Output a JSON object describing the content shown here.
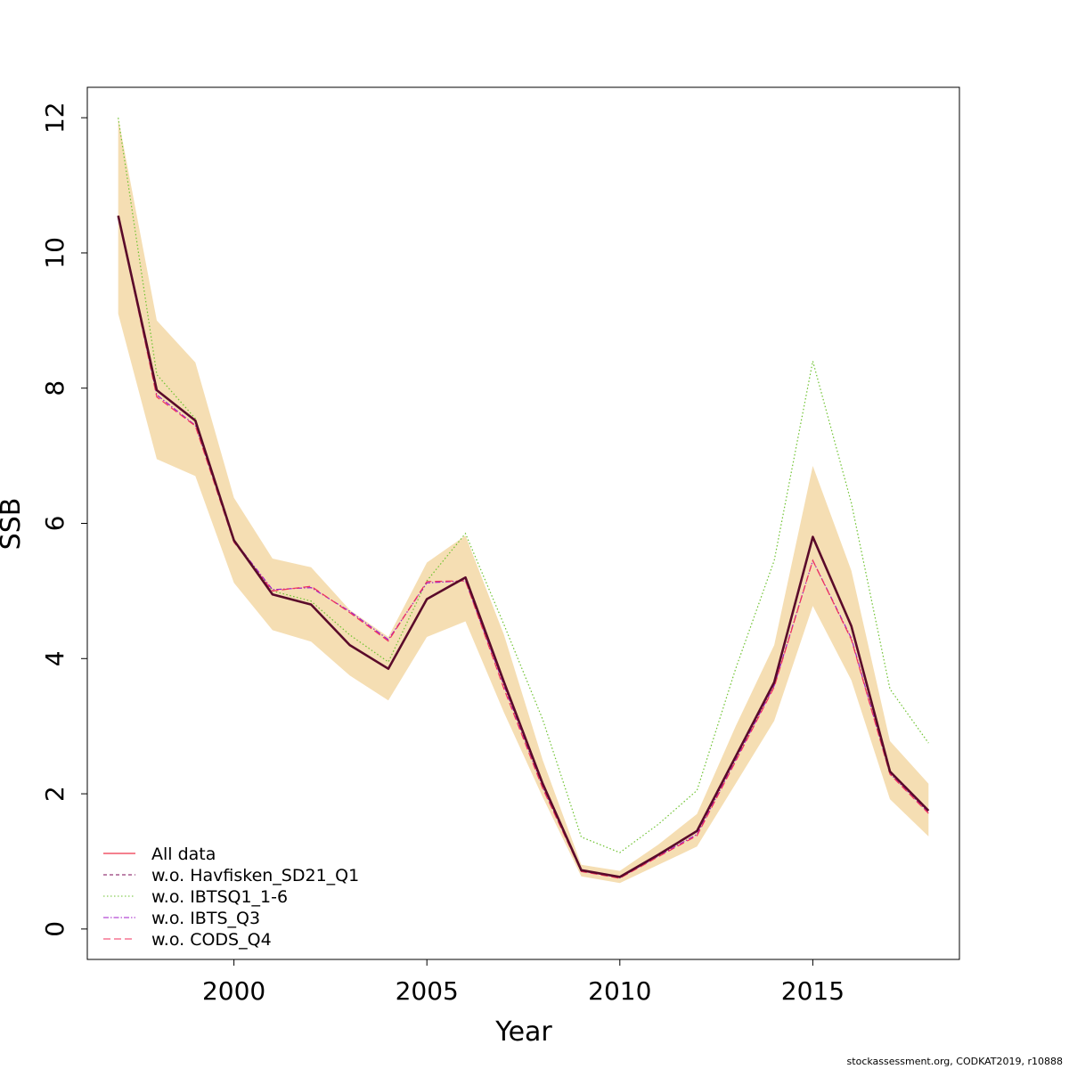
{
  "chart_data": {
    "type": "line",
    "xlabel": "Year",
    "ylabel": "SSB",
    "xlim": [
      1996.2,
      2018.8
    ],
    "ylim": [
      -0.45,
      12.45
    ],
    "x_ticks": [
      2000,
      2005,
      2010,
      2015
    ],
    "y_ticks": [
      0,
      2,
      4,
      6,
      8,
      10,
      12
    ],
    "grid": false,
    "legend_position": "bottom-left",
    "confidence_band": {
      "color": "#F5DEB3",
      "x": [
        1997,
        1998,
        1999,
        2000,
        2001,
        2002,
        2003,
        2004,
        2005,
        2006,
        2007,
        2008,
        2009,
        2010,
        2011,
        2012,
        2013,
        2014,
        2015,
        2016,
        2017,
        2018
      ],
      "lower": [
        9.1,
        6.95,
        6.7,
        5.12,
        4.42,
        4.25,
        3.75,
        3.38,
        4.32,
        4.55,
        3.2,
        1.95,
        0.78,
        0.68,
        0.95,
        1.22,
        2.15,
        3.08,
        4.78,
        3.68,
        1.92,
        1.37
      ],
      "upper": [
        12.0,
        9.0,
        8.38,
        6.38,
        5.48,
        5.35,
        4.72,
        4.32,
        5.42,
        5.82,
        4.35,
        2.5,
        0.95,
        0.86,
        1.25,
        1.7,
        3.0,
        4.2,
        6.85,
        5.3,
        2.78,
        2.15
      ]
    },
    "series": [
      {
        "name": "All data",
        "color": "#E8001C",
        "dash": "solid",
        "y": [
          10.55,
          7.97,
          7.52,
          5.75,
          4.95,
          4.8,
          4.2,
          3.85,
          4.88,
          5.2,
          3.65,
          2.15,
          0.87,
          0.77,
          1.1,
          1.45,
          2.55,
          3.65,
          5.8,
          4.48,
          2.33,
          1.75
        ]
      },
      {
        "name": "w.o. Havfisken_SD21_Q1",
        "color": "#7D0A57",
        "dash": "4,3",
        "y": [
          10.55,
          7.97,
          7.52,
          5.75,
          4.95,
          4.8,
          4.2,
          3.85,
          4.88,
          5.2,
          3.65,
          2.15,
          0.87,
          0.77,
          1.1,
          1.45,
          2.55,
          3.65,
          5.8,
          4.48,
          2.33,
          1.75
        ]
      },
      {
        "name": "w.o. IBTSQ1_1-6",
        "color": "#6DC22F",
        "dash": "1.5,2.5",
        "y": [
          12.0,
          8.2,
          7.55,
          5.75,
          5.0,
          4.85,
          4.35,
          3.95,
          5.15,
          5.85,
          4.5,
          3.1,
          1.36,
          1.13,
          1.55,
          2.05,
          3.85,
          5.45,
          8.4,
          6.3,
          3.55,
          2.75
        ]
      },
      {
        "name": "w.o. IBTS_Q3",
        "color": "#A11EC8",
        "dash": "6,2,1.5,2",
        "y": [
          10.55,
          7.9,
          7.45,
          5.75,
          5.02,
          5.05,
          4.7,
          4.28,
          5.12,
          5.15,
          3.6,
          2.1,
          0.86,
          0.76,
          1.08,
          1.4,
          2.5,
          3.6,
          5.45,
          4.3,
          2.3,
          1.72
        ]
      },
      {
        "name": "w.o. CODS_Q4",
        "color": "#F0325C",
        "dash": "8,4",
        "y": [
          10.55,
          7.87,
          7.44,
          5.72,
          5.0,
          5.07,
          4.68,
          4.26,
          5.14,
          5.15,
          3.55,
          2.08,
          0.85,
          0.75,
          1.07,
          1.38,
          2.48,
          3.58,
          5.45,
          4.28,
          2.29,
          1.71
        ]
      }
    ],
    "main_line": {
      "color": "#5A0A2A",
      "y": [
        10.55,
        7.97,
        7.52,
        5.75,
        4.95,
        4.8,
        4.2,
        3.85,
        4.88,
        5.2,
        3.65,
        2.15,
        0.87,
        0.77,
        1.1,
        1.45,
        2.55,
        3.65,
        5.8,
        4.48,
        2.33,
        1.75
      ]
    }
  },
  "credit": "stockassessment.org, CODKAT2019, r10888"
}
